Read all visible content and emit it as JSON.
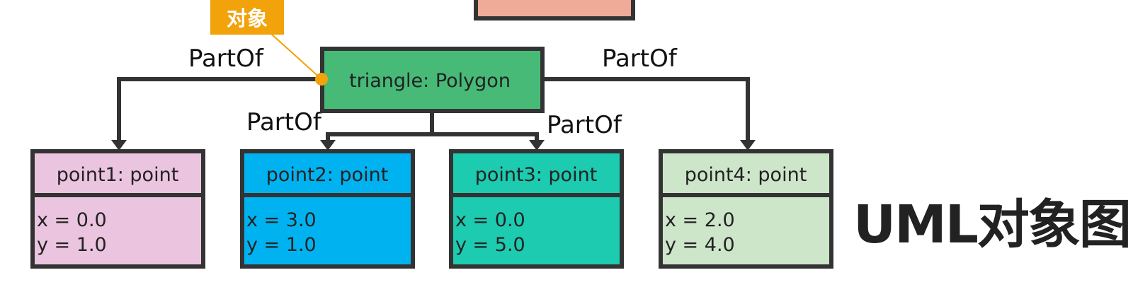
{
  "title": "UML对象图",
  "tag": {
    "label": "对象",
    "color": "#f2a20a"
  },
  "central_object": {
    "name": "triangle: Polygon",
    "fill": "#47ba78"
  },
  "relations": [
    {
      "label": "PartOf"
    },
    {
      "label": "PartOf"
    },
    {
      "label": "PartOf"
    },
    {
      "label": "PartOf"
    }
  ],
  "objects": [
    {
      "name": "point1: point",
      "x_attr": "x = 0.0",
      "y_attr": "y = 1.0",
      "fill": "#ebc4df"
    },
    {
      "name": "point2: point",
      "x_attr": "x = 3.0",
      "y_attr": "y = 1.0",
      "fill": "#00b3f0"
    },
    {
      "name": "point3: point",
      "x_attr": "x = 0.0",
      "y_attr": "y = 5.0",
      "fill": "#1ccbb0"
    },
    {
      "name": "point4: point",
      "x_attr": "x = 2.0",
      "y_attr": "y = 4.0",
      "fill": "#cde6c9"
    }
  ],
  "partial_object": {
    "fill": "#f0aa98"
  },
  "colors": {
    "stroke": "#333333"
  }
}
